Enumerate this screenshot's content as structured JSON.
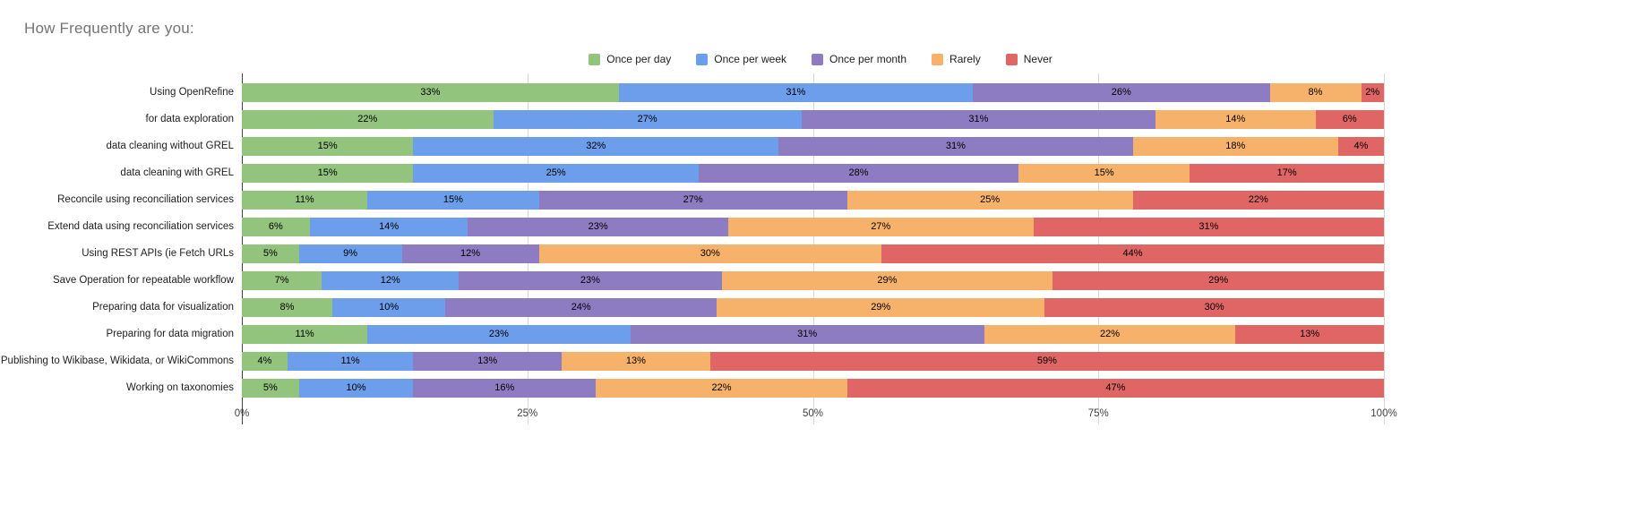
{
  "title": "How Frequently are you:",
  "chart_data": {
    "type": "bar",
    "stacked": true,
    "orientation": "horizontal",
    "title": "How Frequently are you:",
    "legend_position": "top",
    "grid": true,
    "value_suffix": "%",
    "xlim": [
      0,
      100
    ],
    "x_ticks": [
      "0%",
      "25%",
      "50%",
      "75%",
      "100%"
    ],
    "categories": [
      "Using OpenRefine",
      "for data exploration",
      "data cleaning without GREL",
      "data cleaning with GREL",
      "Reconcile using reconciliation services",
      "Extend data using reconciliation services",
      "Using REST APIs (ie Fetch URLs",
      "Save Operation for repeatable workflow",
      "Preparing data for visualization",
      "Preparing for data migration",
      "Publishing to Wikibase, Wikidata, or WikiCommons",
      "Working on taxonomies"
    ],
    "series": [
      {
        "name": "Once per day",
        "color": "#93c47d",
        "values": [
          33,
          22,
          15,
          15,
          11,
          6,
          5,
          7,
          8,
          11,
          4,
          5
        ]
      },
      {
        "name": "Once per week",
        "color": "#6d9eeb",
        "values": [
          31,
          27,
          32,
          25,
          15,
          14,
          9,
          12,
          10,
          23,
          11,
          10
        ]
      },
      {
        "name": "Once per month",
        "color": "#8e7cc3",
        "values": [
          26,
          31,
          31,
          28,
          27,
          23,
          12,
          23,
          24,
          31,
          13,
          16
        ]
      },
      {
        "name": "Rarely",
        "color": "#f6b26b",
        "values": [
          8,
          14,
          18,
          15,
          25,
          27,
          30,
          29,
          29,
          22,
          13,
          22
        ]
      },
      {
        "name": "Never",
        "color": "#e06666",
        "values": [
          2,
          6,
          4,
          17,
          22,
          31,
          44,
          29,
          30,
          13,
          59,
          47
        ]
      }
    ]
  }
}
